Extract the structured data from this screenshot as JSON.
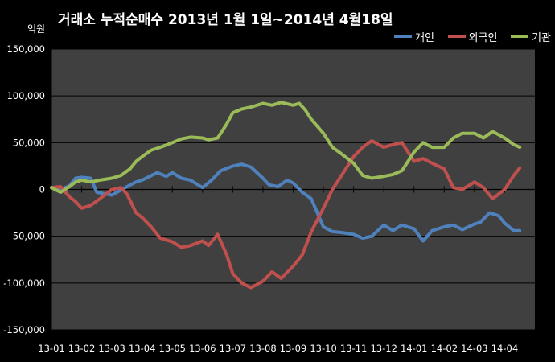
{
  "chart_data": {
    "type": "line",
    "title": "거래소  누적순매수 2013년 1월 1일~2014년 4월18일",
    "unit_label": "억원",
    "x_tick_labels": [
      "13-01",
      "13-02",
      "13-03",
      "13-04",
      "13-05",
      "13-06",
      "13-07",
      "13-08",
      "13-09",
      "13-10",
      "13-11",
      "13-12",
      "14-01",
      "14-02",
      "14-03",
      "14-04"
    ],
    "ylim": [
      -150000,
      150000
    ],
    "y_ticks": [
      150000,
      100000,
      50000,
      0,
      -50000,
      -100000,
      -150000
    ],
    "y_tick_labels": [
      "150,000",
      "100,000",
      "50,000",
      "0",
      "-50,000",
      "-100,000",
      "-150,000"
    ],
    "legend_position": "top-right",
    "x_range": [
      0,
      15.5
    ],
    "series": [
      {
        "name": "개인",
        "color": "#4f81bd",
        "points": [
          [
            0,
            2000
          ],
          [
            0.3,
            0
          ],
          [
            0.6,
            4000
          ],
          [
            0.8,
            12000
          ],
          [
            1.0,
            13000
          ],
          [
            1.3,
            12000
          ],
          [
            1.5,
            -3000
          ],
          [
            2.0,
            -6000
          ],
          [
            2.5,
            3000
          ],
          [
            2.8,
            8000
          ],
          [
            3.0,
            10000
          ],
          [
            3.5,
            18000
          ],
          [
            3.8,
            14000
          ],
          [
            4.0,
            18000
          ],
          [
            4.3,
            12000
          ],
          [
            4.6,
            10000
          ],
          [
            5.0,
            2000
          ],
          [
            5.3,
            10000
          ],
          [
            5.6,
            20000
          ],
          [
            6.0,
            25000
          ],
          [
            6.3,
            27000
          ],
          [
            6.6,
            24000
          ],
          [
            7.0,
            12000
          ],
          [
            7.2,
            5000
          ],
          [
            7.5,
            3000
          ],
          [
            7.8,
            10000
          ],
          [
            8.0,
            7000
          ],
          [
            8.3,
            -3000
          ],
          [
            8.6,
            -10000
          ],
          [
            9.0,
            -40000
          ],
          [
            9.3,
            -45000
          ],
          [
            9.6,
            -46000
          ],
          [
            10.0,
            -48000
          ],
          [
            10.3,
            -52000
          ],
          [
            10.6,
            -50000
          ],
          [
            11.0,
            -38000
          ],
          [
            11.3,
            -44000
          ],
          [
            11.6,
            -38000
          ],
          [
            12.0,
            -42000
          ],
          [
            12.3,
            -55000
          ],
          [
            12.6,
            -44000
          ],
          [
            13.0,
            -40000
          ],
          [
            13.3,
            -38000
          ],
          [
            13.6,
            -43000
          ],
          [
            14.0,
            -37000
          ],
          [
            14.2,
            -35000
          ],
          [
            14.5,
            -25000
          ],
          [
            14.8,
            -28000
          ],
          [
            15.0,
            -36000
          ],
          [
            15.3,
            -44000
          ],
          [
            15.5,
            -44000
          ]
        ]
      },
      {
        "name": "외국인",
        "color": "#c0504d",
        "points": [
          [
            0,
            2000
          ],
          [
            0.3,
            3000
          ],
          [
            0.6,
            -8000
          ],
          [
            0.8,
            -13000
          ],
          [
            1.0,
            -20000
          ],
          [
            1.3,
            -17000
          ],
          [
            1.6,
            -10000
          ],
          [
            2.0,
            0
          ],
          [
            2.3,
            2000
          ],
          [
            2.5,
            -5000
          ],
          [
            2.8,
            -25000
          ],
          [
            3.0,
            -30000
          ],
          [
            3.3,
            -40000
          ],
          [
            3.6,
            -52000
          ],
          [
            4.0,
            -56000
          ],
          [
            4.3,
            -62000
          ],
          [
            4.6,
            -60000
          ],
          [
            5.0,
            -55000
          ],
          [
            5.2,
            -60000
          ],
          [
            5.5,
            -48000
          ],
          [
            5.8,
            -70000
          ],
          [
            6.0,
            -90000
          ],
          [
            6.3,
            -100000
          ],
          [
            6.6,
            -105000
          ],
          [
            7.0,
            -98000
          ],
          [
            7.3,
            -88000
          ],
          [
            7.6,
            -95000
          ],
          [
            8.0,
            -82000
          ],
          [
            8.3,
            -70000
          ],
          [
            8.6,
            -45000
          ],
          [
            9.0,
            -20000
          ],
          [
            9.3,
            0
          ],
          [
            9.6,
            15000
          ],
          [
            10.0,
            35000
          ],
          [
            10.3,
            45000
          ],
          [
            10.6,
            52000
          ],
          [
            11.0,
            45000
          ],
          [
            11.3,
            48000
          ],
          [
            11.6,
            50000
          ],
          [
            12.0,
            30000
          ],
          [
            12.3,
            33000
          ],
          [
            12.6,
            28000
          ],
          [
            13.0,
            22000
          ],
          [
            13.3,
            2000
          ],
          [
            13.6,
            0
          ],
          [
            14.0,
            8000
          ],
          [
            14.3,
            2000
          ],
          [
            14.6,
            -10000
          ],
          [
            15.0,
            0
          ],
          [
            15.3,
            15000
          ],
          [
            15.5,
            23000
          ]
        ]
      },
      {
        "name": "기관",
        "color": "#9bbb59",
        "points": [
          [
            0,
            2000
          ],
          [
            0.3,
            -3000
          ],
          [
            0.6,
            3000
          ],
          [
            0.8,
            8000
          ],
          [
            1.0,
            10000
          ],
          [
            1.3,
            8000
          ],
          [
            1.6,
            10000
          ],
          [
            2.0,
            12000
          ],
          [
            2.3,
            15000
          ],
          [
            2.6,
            22000
          ],
          [
            2.8,
            30000
          ],
          [
            3.0,
            35000
          ],
          [
            3.3,
            42000
          ],
          [
            3.6,
            45000
          ],
          [
            4.0,
            50000
          ],
          [
            4.3,
            54000
          ],
          [
            4.6,
            56000
          ],
          [
            5.0,
            55000
          ],
          [
            5.2,
            53000
          ],
          [
            5.5,
            55000
          ],
          [
            5.8,
            70000
          ],
          [
            6.0,
            82000
          ],
          [
            6.3,
            86000
          ],
          [
            6.6,
            88000
          ],
          [
            7.0,
            92000
          ],
          [
            7.3,
            90000
          ],
          [
            7.6,
            93000
          ],
          [
            8.0,
            90000
          ],
          [
            8.2,
            92000
          ],
          [
            8.4,
            85000
          ],
          [
            8.6,
            75000
          ],
          [
            9.0,
            60000
          ],
          [
            9.3,
            45000
          ],
          [
            9.6,
            38000
          ],
          [
            10.0,
            28000
          ],
          [
            10.3,
            15000
          ],
          [
            10.6,
            12000
          ],
          [
            11.0,
            14000
          ],
          [
            11.3,
            16000
          ],
          [
            11.6,
            20000
          ],
          [
            12.0,
            40000
          ],
          [
            12.3,
            50000
          ],
          [
            12.6,
            45000
          ],
          [
            13.0,
            45000
          ],
          [
            13.3,
            55000
          ],
          [
            13.6,
            60000
          ],
          [
            14.0,
            60000
          ],
          [
            14.3,
            55000
          ],
          [
            14.6,
            62000
          ],
          [
            15.0,
            55000
          ],
          [
            15.3,
            48000
          ],
          [
            15.5,
            45000
          ]
        ]
      }
    ]
  }
}
